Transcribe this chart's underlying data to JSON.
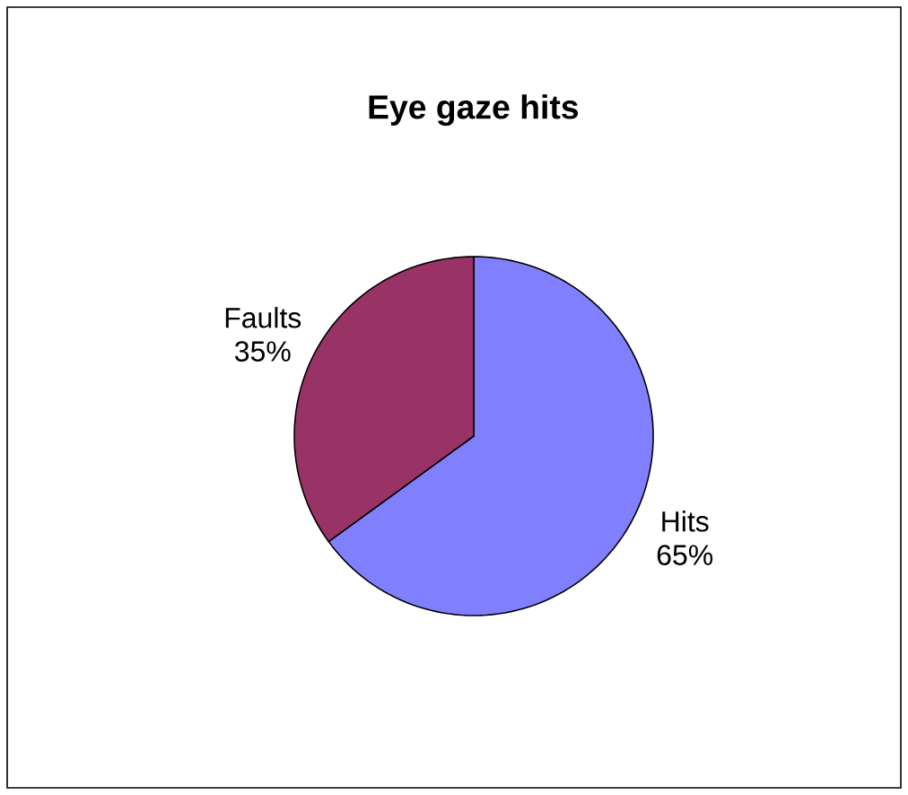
{
  "chart_data": {
    "type": "pie",
    "title": "Eye gaze hits",
    "categories": [
      "Hits",
      "Faults"
    ],
    "values": [
      65,
      35
    ],
    "colors": [
      "#8080ff",
      "#993366"
    ],
    "value_labels": [
      "65%",
      "35%"
    ]
  }
}
